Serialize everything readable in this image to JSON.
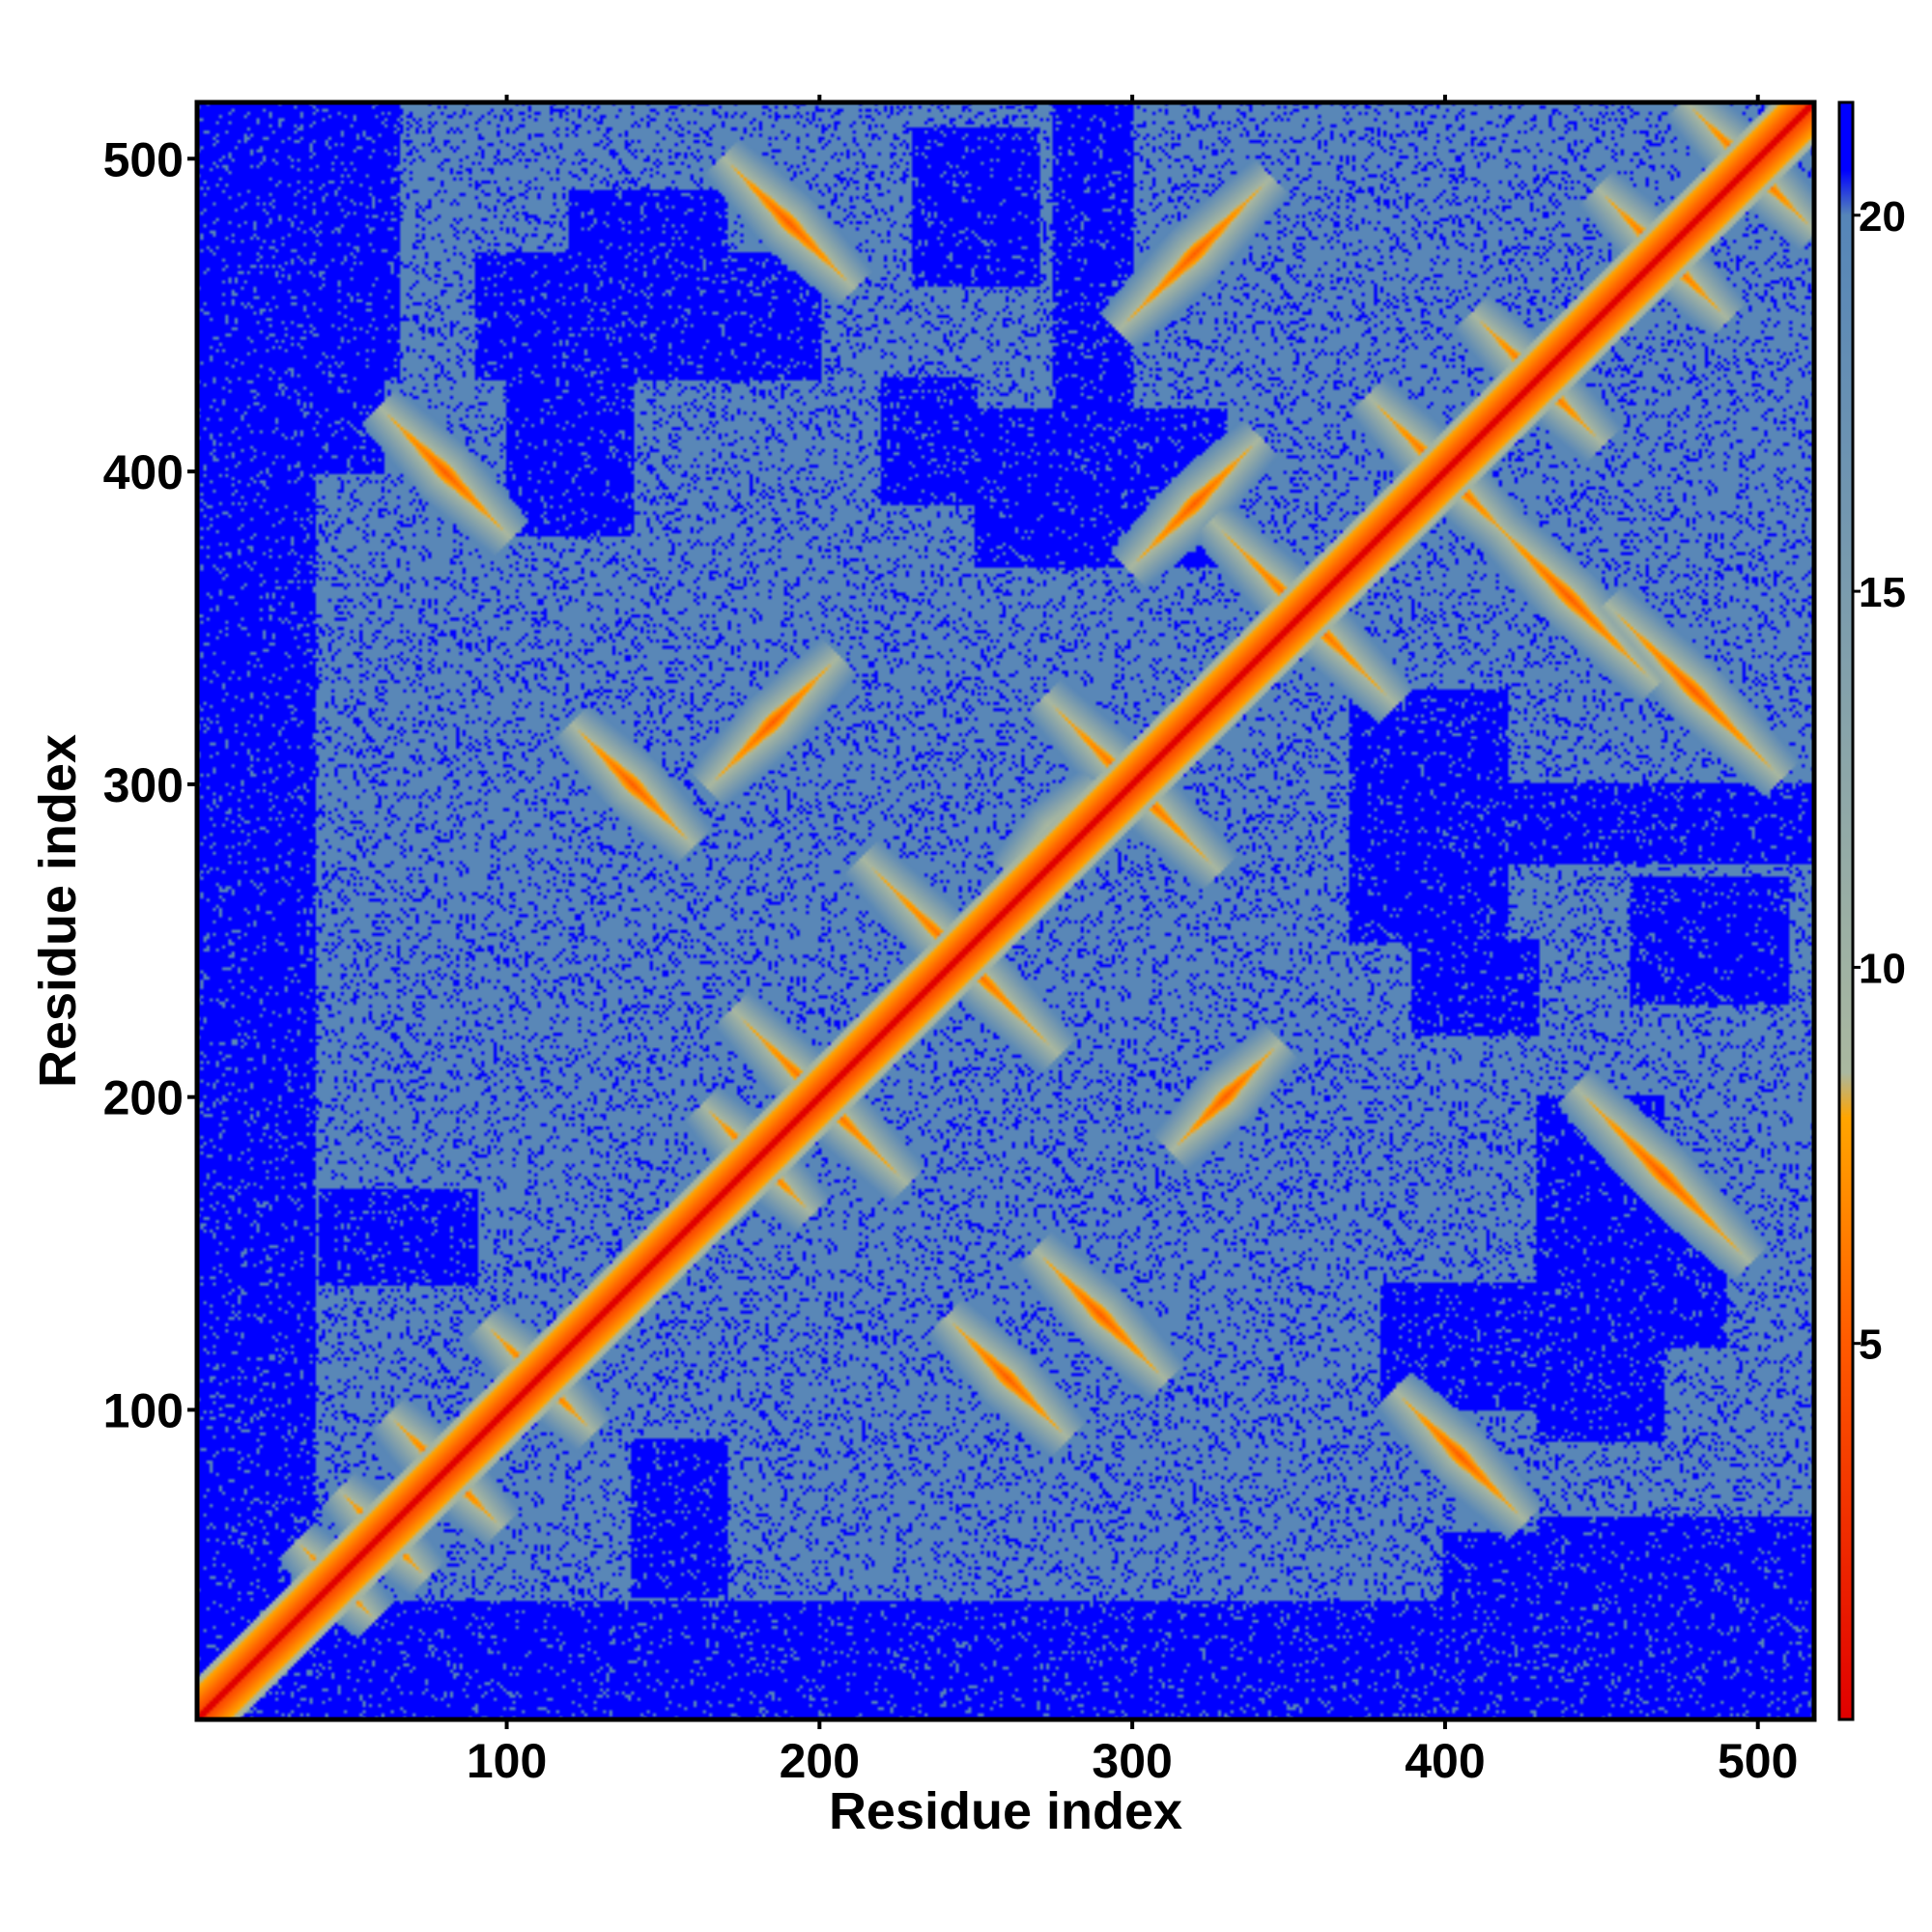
{
  "chart_data": {
    "type": "heatmap",
    "title": "",
    "xlabel": "Residue index",
    "ylabel": "Residue index",
    "xlim": [
      1,
      518
    ],
    "ylim": [
      1,
      518
    ],
    "x_ticks": [
      "100",
      "200",
      "300",
      "400",
      "500"
    ],
    "y_ticks": [
      "100",
      "200",
      "300",
      "400",
      "500"
    ],
    "x_tick_values": [
      100,
      200,
      300,
      400,
      500
    ],
    "y_tick_values": [
      100,
      200,
      300,
      400,
      500
    ],
    "colorbar": {
      "ticks": [
        "5",
        "10",
        "15",
        "20"
      ],
      "tick_values": [
        5,
        10,
        15,
        20
      ],
      "range": [
        0,
        21.5
      ],
      "stops": [
        {
          "value": 0,
          "color": "#e00000"
        },
        {
          "value": 5,
          "color": "#ff5a00"
        },
        {
          "value": 8,
          "color": "#ffa500"
        },
        {
          "value": 8.6,
          "color": "#aab8a0"
        },
        {
          "value": 20,
          "color": "#5585b8"
        },
        {
          "value": 20.6,
          "color": "#0000ff"
        }
      ]
    },
    "grid": false,
    "legend": "colorbar right",
    "diagonal_value": 0,
    "background_value": 21,
    "contacts": [
      {
        "x": 80,
        "y": 80,
        "dir": "anti",
        "len": 26
      },
      {
        "x": 200,
        "y": 200,
        "dir": "anti",
        "len": 40
      },
      {
        "x": 245,
        "y": 245,
        "dir": "anti",
        "len": 45
      },
      {
        "x": 300,
        "y": 300,
        "dir": "anti",
        "len": 40
      },
      {
        "x": 355,
        "y": 355,
        "dir": "anti",
        "len": 42
      },
      {
        "x": 400,
        "y": 400,
        "dir": "anti",
        "len": 35
      },
      {
        "x": 430,
        "y": 430,
        "dir": "anti",
        "len": 30
      },
      {
        "x": 498,
        "y": 498,
        "dir": "anti",
        "len": 30
      },
      {
        "x": 80,
        "y": 400,
        "dir": "anti",
        "len": 30
      },
      {
        "x": 140,
        "y": 300,
        "dir": "anti",
        "len": 28
      },
      {
        "x": 185,
        "y": 320,
        "dir": "diag",
        "len": 30
      },
      {
        "x": 190,
        "y": 480,
        "dir": "anti",
        "len": 30
      },
      {
        "x": 275,
        "y": 285,
        "dir": "diag",
        "len": 20
      },
      {
        "x": 320,
        "y": 470,
        "dir": "diag",
        "len": 35
      },
      {
        "x": 320,
        "y": 390,
        "dir": "diag",
        "len": 30
      },
      {
        "x": 440,
        "y": 360,
        "dir": "anti",
        "len": 40
      },
      {
        "x": 480,
        "y": 330,
        "dir": "anti",
        "len": 40
      },
      {
        "x": 405,
        "y": 85,
        "dir": "anti",
        "len": 30
      },
      {
        "x": 470,
        "y": 175,
        "dir": "anti",
        "len": 40
      },
      {
        "x": 110,
        "y": 110,
        "dir": "anti",
        "len": 25
      },
      {
        "x": 230,
        "y": 230,
        "dir": "diag",
        "len": 30
      },
      {
        "x": 290,
        "y": 130,
        "dir": "anti",
        "len": 30
      },
      {
        "x": 260,
        "y": 110,
        "dir": "anti",
        "len": 28
      },
      {
        "x": 330,
        "y": 200,
        "dir": "diag",
        "len": 25
      },
      {
        "x": 60,
        "y": 60,
        "dir": "anti",
        "len": 20
      },
      {
        "x": 45,
        "y": 45,
        "dir": "anti",
        "len": 18
      },
      {
        "x": 180,
        "y": 180,
        "dir": "anti",
        "len": 25
      },
      {
        "x": 470,
        "y": 470,
        "dir": "anti",
        "len": 30
      }
    ],
    "far_regions": [
      {
        "x": [
          1,
          38
        ],
        "y": [
          1,
          518
        ]
      },
      {
        "x": [
          1,
          518
        ],
        "y": [
          1,
          38
        ]
      },
      {
        "x": [
          10,
          65
        ],
        "y": [
          430,
          518
        ]
      },
      {
        "x": [
          120,
          200
        ],
        "y": [
          430,
          470
        ]
      },
      {
        "x": [
          400,
          518
        ],
        "y": [
          10,
          60
        ]
      },
      {
        "x": [
          250,
          330
        ],
        "y": [
          370,
          420
        ]
      },
      {
        "x": [
          460,
          510
        ],
        "y": [
          230,
          270
        ]
      },
      {
        "x": [
          380,
          450
        ],
        "y": [
          100,
          140
        ]
      },
      {
        "x": [
          430,
          490
        ],
        "y": [
          120,
          170
        ]
      },
      {
        "x": [
          390,
          430
        ],
        "y": [
          220,
          250
        ]
      },
      {
        "x": [
          400,
          518
        ],
        "y": [
          275,
          300
        ]
      },
      {
        "x": [
          40,
          90
        ],
        "y": [
          140,
          170
        ]
      },
      {
        "x": [
          90,
          140
        ],
        "y": [
          430,
          470
        ]
      }
    ]
  }
}
